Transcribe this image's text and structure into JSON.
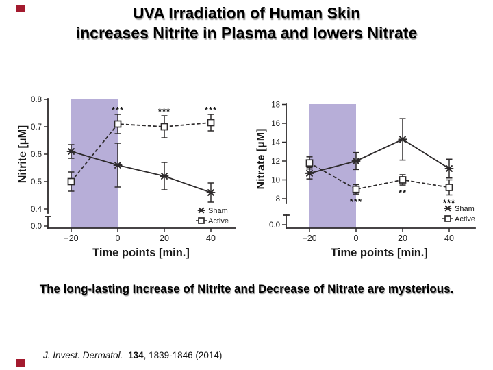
{
  "slide": {
    "title_line1": "UVA Irradiation of Human Skin",
    "title_line2": "increases Nitrite in Plasma and lowers Nitrate",
    "statement": "The long-lasting Increase of Nitrite and Decrease of Nitrate are mysterious.",
    "citation": {
      "journal": "J. Invest. Dermatol.",
      "volume": "134",
      "rest": ", 1839-1846 (2014)"
    },
    "accent_color": "#a31a2e"
  },
  "style": {
    "band_color": "#b7aed8",
    "line_color": "#2d2a2b",
    "text_color": "#1a1a1a"
  },
  "chart_data": [
    {
      "type": "line",
      "title": "",
      "ylabel": "Nitrite [μM]",
      "xlabel": "Time points [min.]",
      "x": [
        -20,
        0,
        20,
        40
      ],
      "x_tick_labels": [
        "−20",
        "0",
        "20",
        "40"
      ],
      "y_ticks": [
        0.4,
        0.5,
        0.6,
        0.7,
        0.8
      ],
      "y_tick_labels": [
        "0.4",
        "0.5",
        "0.6",
        "0.7",
        "0.8"
      ],
      "y_axis_break_label": "0.0",
      "ylim": [
        0.4,
        0.8
      ],
      "grid": false,
      "band_x": [
        -20,
        0
      ],
      "legend_position": "lower-right-inside",
      "series": [
        {
          "name": "Sham",
          "marker": "star",
          "line": "solid",
          "values": [
            0.61,
            0.56,
            0.52,
            0.46
          ],
          "errors": [
            0.025,
            0.08,
            0.05,
            0.035
          ]
        },
        {
          "name": "Active",
          "marker": "square",
          "line": "dashed",
          "values": [
            0.5,
            0.71,
            0.7,
            0.715
          ],
          "errors": [
            0.035,
            0.035,
            0.04,
            0.03
          ]
        }
      ],
      "significance": [
        {
          "x": 0,
          "text": "***",
          "position": "above"
        },
        {
          "x": 20,
          "text": "***",
          "position": "above"
        },
        {
          "x": 40,
          "text": "***",
          "position": "above"
        }
      ],
      "legend": [
        "Sham",
        "Active"
      ]
    },
    {
      "type": "line",
      "title": "",
      "ylabel": "Nitrate [μM]",
      "xlabel": "Time points [min.]",
      "x": [
        -20,
        0,
        20,
        40
      ],
      "x_tick_labels": [
        "−20",
        "0",
        "20",
        "40"
      ],
      "y_ticks": [
        8,
        10,
        12,
        14,
        16,
        18
      ],
      "y_tick_labels": [
        "8",
        "10",
        "12",
        "14",
        "16",
        "18"
      ],
      "y_axis_break_label": "0.0",
      "ylim": [
        8,
        18
      ],
      "grid": false,
      "band_x": [
        -20,
        0
      ],
      "legend_position": "lower-right-inside",
      "series": [
        {
          "name": "Sham",
          "marker": "star",
          "line": "solid",
          "values": [
            10.7,
            12.0,
            14.3,
            11.2
          ],
          "errors": [
            0.6,
            0.9,
            2.2,
            1.0
          ]
        },
        {
          "name": "Active",
          "marker": "square",
          "line": "dashed",
          "values": [
            11.8,
            9.0,
            10.0,
            9.2
          ],
          "errors": [
            0.65,
            0.5,
            0.55,
            0.8
          ]
        }
      ],
      "significance": [
        {
          "x": 0,
          "text": "***",
          "position": "below"
        },
        {
          "x": 20,
          "text": "**",
          "position": "below"
        },
        {
          "x": 40,
          "text": "***",
          "position": "below"
        }
      ],
      "legend": [
        "Sham",
        "Active"
      ]
    }
  ]
}
